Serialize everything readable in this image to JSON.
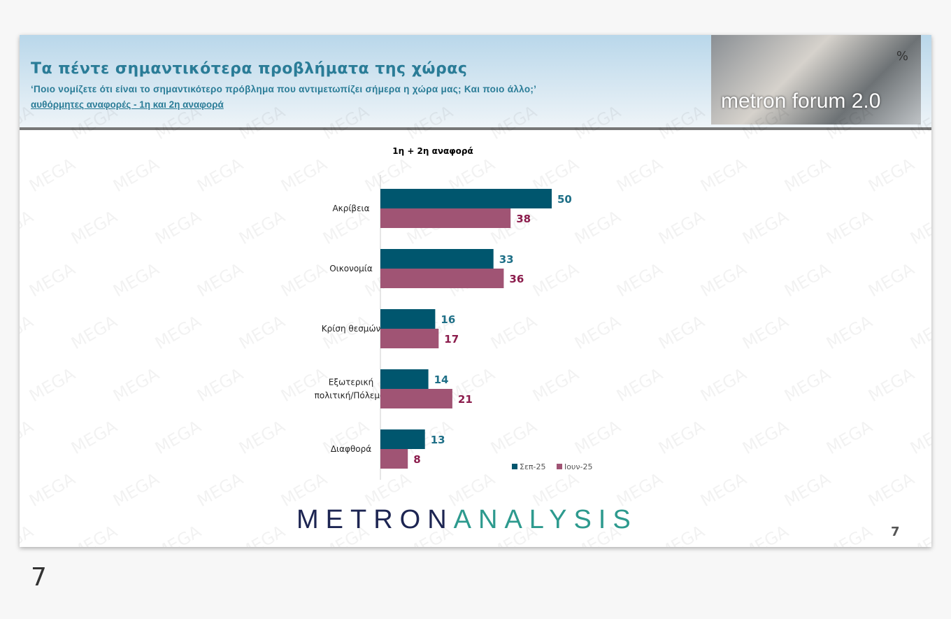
{
  "header": {
    "title": "Τα πέντε σημαντικότερα προβλήματα της χώρας",
    "question": "‘Ποιο νομίζετε ότι είναι το σημαντικότερο πρόβλημα που αντιμετωπίζει σήμερα η χώρα μας; Και ποιο άλλο;’",
    "subtitle": "αυθόρμητες αναφορές - 1η και 2η αναφορά",
    "logo_text": "metron forum 2.0",
    "logo_symbol": "%"
  },
  "footer": {
    "brand_a": "METRON",
    "brand_b": "ANALYSIS",
    "page_number": "7"
  },
  "outer_page_number": "7",
  "watermark": "MEGA",
  "chart_data": {
    "type": "bar",
    "orientation": "horizontal",
    "title": "1η + 2η αναφορά",
    "categories": [
      "Ακρίβεια",
      "Οικονομία",
      "Κρίση θεσμών",
      "Εξωτερική πολιτική/Πόλεμοι",
      "Διαφθορά"
    ],
    "series": [
      {
        "name": "Σεπ-25",
        "color": "#00566e",
        "values": [
          50,
          33,
          16,
          14,
          13
        ]
      },
      {
        "name": "Ιουν-25",
        "color": "#a05474",
        "values": [
          38,
          36,
          17,
          21,
          8
        ]
      }
    ],
    "label_colors": [
      "#1e6f87",
      "#8b1c4c"
    ],
    "legend": "bottom-right",
    "grid": false
  }
}
